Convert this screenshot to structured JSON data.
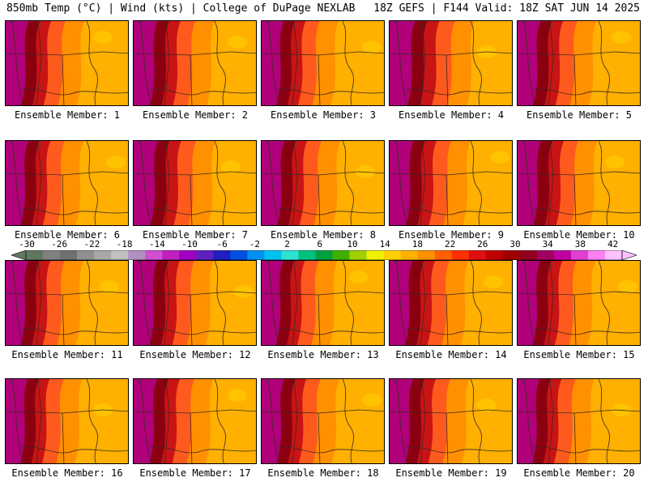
{
  "header": {
    "left": "850mb Temp (°C) | Wind (kts) | College of DuPage NEXLAB",
    "right": "18Z GEFS | F144 Valid: 18Z SAT JUN 14 2025"
  },
  "members": [
    {
      "label": "Ensemble Member: 1",
      "warmth": 0.45
    },
    {
      "label": "Ensemble Member: 2",
      "warmth": 0.55
    },
    {
      "label": "Ensemble Member: 3",
      "warmth": 0.35
    },
    {
      "label": "Ensemble Member: 4",
      "warmth": 0.75
    },
    {
      "label": "Ensemble Member: 5",
      "warmth": 0.45
    },
    {
      "label": "Ensemble Member: 6",
      "warmth": 0.4
    },
    {
      "label": "Ensemble Member: 7",
      "warmth": 0.6
    },
    {
      "label": "Ensemble Member: 8",
      "warmth": 0.45
    },
    {
      "label": "Ensemble Member: 9",
      "warmth": 0.55
    },
    {
      "label": "Ensemble Member: 10",
      "warmth": 0.5
    },
    {
      "label": "Ensemble Member: 11",
      "warmth": 0.4
    },
    {
      "label": "Ensemble Member: 12",
      "warmth": 0.5
    },
    {
      "label": "Ensemble Member: 13",
      "warmth": 0.3
    },
    {
      "label": "Ensemble Member: 14",
      "warmth": 0.45
    },
    {
      "label": "Ensemble Member: 15",
      "warmth": 0.4
    },
    {
      "label": "Ensemble Member: 16",
      "warmth": 0.35
    },
    {
      "label": "Ensemble Member: 17",
      "warmth": 0.5
    },
    {
      "label": "Ensemble Member: 18",
      "warmth": 0.4
    },
    {
      "label": "Ensemble Member: 19",
      "warmth": 0.5
    },
    {
      "label": "Ensemble Member: 20",
      "warmth": 0.35
    }
  ],
  "colorbar": {
    "labels": [
      "-30",
      "-26",
      "-22",
      "-18",
      "-14",
      "-10",
      "-6",
      "-2",
      "2",
      "6",
      "10",
      "14",
      "18",
      "22",
      "26",
      "30",
      "34",
      "38",
      "42"
    ],
    "colors": [
      "#607860",
      "#808080",
      "#707070",
      "#909090",
      "#a8a8a8",
      "#c0c0c0",
      "#b090c0",
      "#d050d0",
      "#c020c0",
      "#a000c0",
      "#6020c0",
      "#2020c0",
      "#0050e0",
      "#0090f0",
      "#00c0f0",
      "#30e0d0",
      "#00c080",
      "#00a040",
      "#40b000",
      "#a0d000",
      "#f0f000",
      "#ffd000",
      "#ffb000",
      "#ff9000",
      "#ff6000",
      "#ff3000",
      "#e01010",
      "#c00000",
      "#a00000",
      "#900020",
      "#a00060",
      "#c000a0",
      "#e040d0",
      "#ff80f0",
      "#ffc0ff"
    ]
  }
}
